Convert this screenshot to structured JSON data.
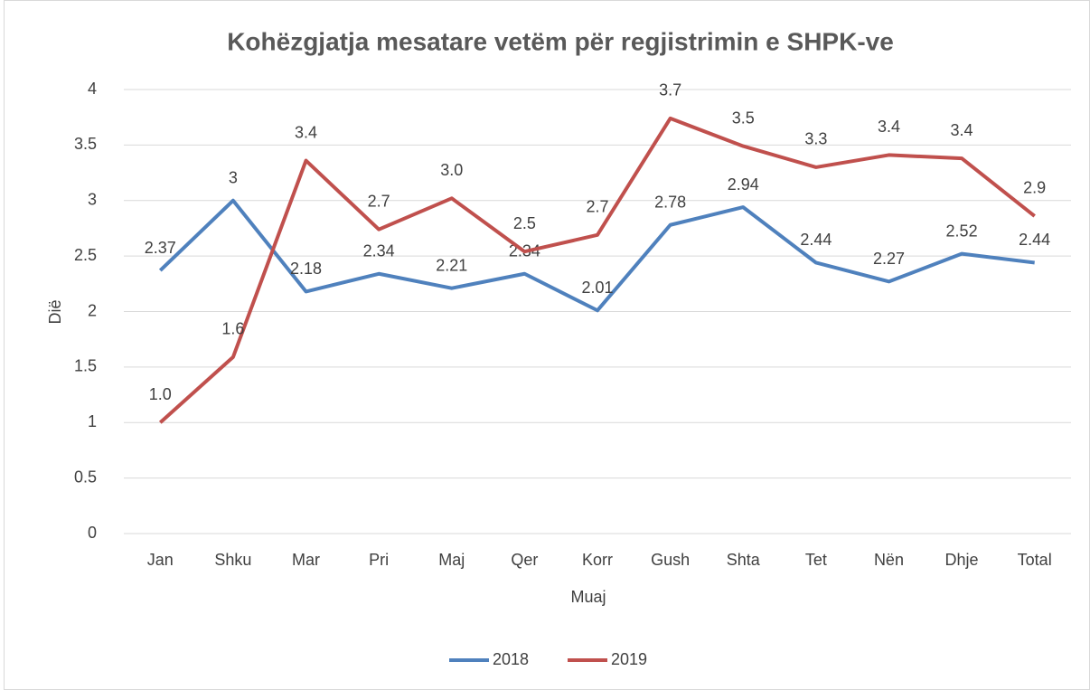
{
  "chart_data": {
    "type": "line",
    "title": "Kohëzgjatja mesatare vetëm për regjistrimin e SHPK-ve",
    "y_label": "Dië",
    "x_label": "Muaj",
    "categories": [
      "Jan",
      "Shku",
      "Mar",
      "Pri",
      "Maj",
      "Qer",
      "Korr",
      "Gush",
      "Shta",
      "Tet",
      "Nën",
      "Dhje",
      "Total"
    ],
    "series": [
      {
        "name": "2018",
        "color": "#4f81bd",
        "values": [
          2.37,
          3,
          2.18,
          2.34,
          2.21,
          2.34,
          2.01,
          2.78,
          2.94,
          2.44,
          2.27,
          2.52,
          2.44
        ]
      },
      {
        "name": "2019",
        "color": "#c0504d",
        "values": [
          1.0,
          1.59,
          3.36,
          2.74,
          3.02,
          2.54,
          2.69,
          3.74,
          3.49,
          3.3,
          3.41,
          3.38,
          2.86
        ],
        "value_labels": [
          "1.0",
          "1.6",
          "3.4",
          "2.7",
          "3.0",
          "2.5",
          "2.7",
          "3.7",
          "3.5",
          "3.3",
          "3.4",
          "3.4",
          "2.9"
        ]
      }
    ],
    "ylim": [
      0,
      4
    ],
    "yticks": [
      0,
      0.5,
      1,
      1.5,
      2,
      2.5,
      3,
      3.5,
      4
    ],
    "grid": true,
    "legend": "bottom"
  }
}
